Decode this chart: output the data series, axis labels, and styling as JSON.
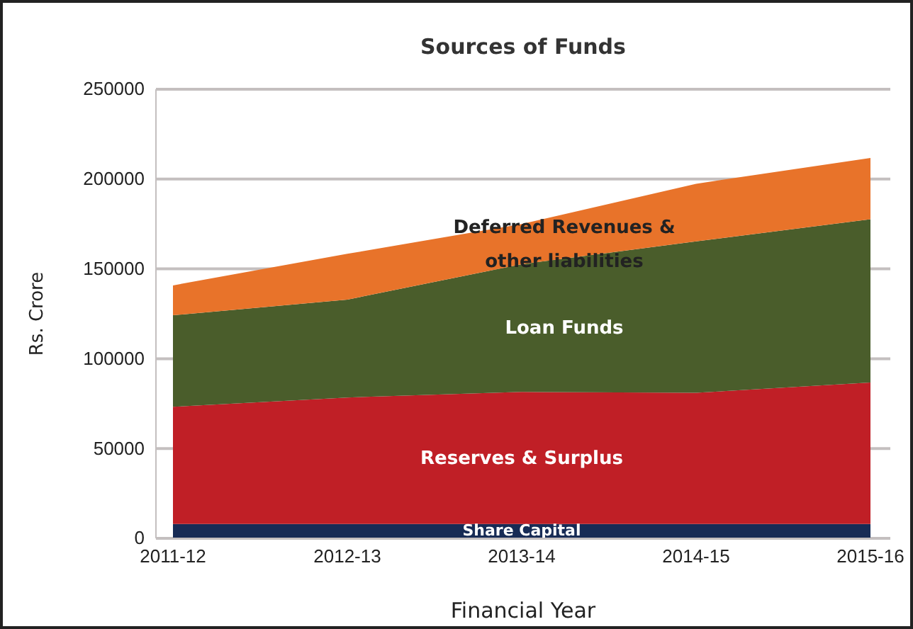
{
  "chart_data": {
    "type": "area",
    "stacked": true,
    "title": "Sources of Funds",
    "xlabel": "Financial Year",
    "ylabel": "Rs. Crore",
    "categories": [
      "2011-12",
      "2012-13",
      "2013-14",
      "2014-15",
      "2015-16"
    ],
    "ylim": [
      0,
      250000
    ],
    "yticks": [
      0,
      50000,
      100000,
      150000,
      200000,
      250000
    ],
    "grid": "y",
    "series": [
      {
        "name": "Share Capital",
        "color": "#172b55",
        "values": [
          8000,
          8000,
          8000,
          8000,
          8000
        ]
      },
      {
        "name": "Reserves & Surplus",
        "color": "#c01f26",
        "values": [
          65200,
          70400,
          73500,
          73000,
          78800
        ]
      },
      {
        "name": "Loan Funds",
        "color": "#4a5d2b",
        "values": [
          51000,
          54500,
          71100,
          84300,
          90800
        ]
      },
      {
        "name": "Deferred Revenues & other liabilities",
        "color": "#e8732a",
        "values": [
          16600,
          25500,
          22400,
          32100,
          34200
        ]
      }
    ]
  }
}
